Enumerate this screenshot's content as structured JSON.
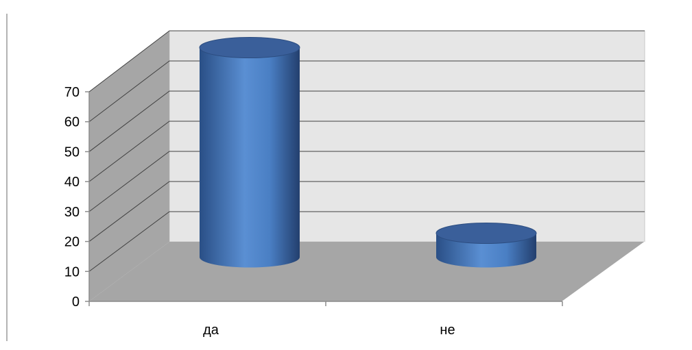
{
  "chart_data": {
    "type": "bar",
    "style": "3d-cylinder",
    "categories": [
      "да",
      "не"
    ],
    "values": [
      70,
      8
    ],
    "ylim": [
      0,
      70
    ],
    "yticks": [
      0,
      10,
      20,
      30,
      40,
      50,
      60,
      70
    ],
    "grid": true,
    "legend": "none",
    "colors": {
      "bar": "#4f81bd",
      "bar_top": "#3a5f9a",
      "back_wall": "#e6e6e6",
      "side_wall": "#a6a6a6",
      "floor": "#a6a6a6",
      "gridline": "#404040"
    }
  }
}
